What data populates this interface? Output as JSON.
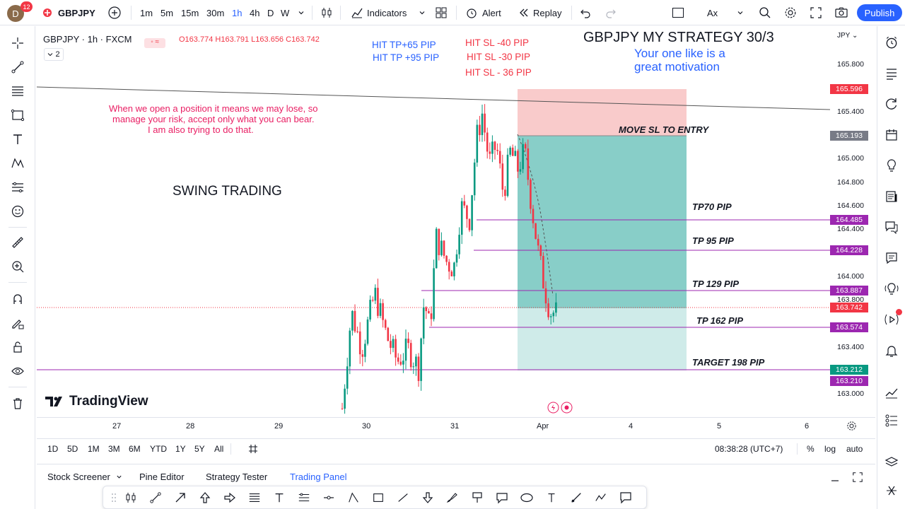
{
  "topbar": {
    "avatar_letter": "D",
    "notification_count": "12",
    "symbol": "GBPJPY",
    "intervals": [
      "1m",
      "5m",
      "15m",
      "30m",
      "1h",
      "4h",
      "D",
      "W"
    ],
    "active_interval": "1h",
    "indicators_label": "Indicators",
    "alert_label": "Alert",
    "replay_label": "Replay",
    "ax_label": "Ax",
    "publish_label": "Publish"
  },
  "legend": {
    "title": "GBPJPY · 1h · FXCM",
    "open": "O163.774",
    "high": "H163.791",
    "low": "L163.656",
    "close": "C163.742",
    "collapse_count": "2"
  },
  "currency": "JPY",
  "price_labels": [
    "165.800",
    "165.400",
    "165.000",
    "164.800",
    "164.600",
    "164.400",
    "164.000",
    "163.800",
    "163.400",
    "163.000"
  ],
  "price_tags": [
    {
      "value": "165.596",
      "color": "#f23645"
    },
    {
      "value": "165.193",
      "color": "#787b86"
    },
    {
      "value": "164.485",
      "color": "#9c27b0"
    },
    {
      "value": "164.228",
      "color": "#9c27b0"
    },
    {
      "value": "163.887",
      "color": "#9c27b0"
    },
    {
      "value": "163.742",
      "color": "#f23645"
    },
    {
      "value": "163.574",
      "color": "#9c27b0"
    },
    {
      "value": "163.212",
      "color": "#089981"
    },
    {
      "value": "163.210",
      "color": "#9c27b0"
    }
  ],
  "annotations": {
    "hit_tp_1": "HIT TP+65 PIP",
    "hit_tp_2": "HIT TP  +95 PIP",
    "hit_sl_1": "HIT SL -40 PIP",
    "hit_sl_2": "HIT SL -30 PIP",
    "hit_sl_3": "HIT SL - 36 PIP",
    "strategy_title": "GBPJPY MY STRATEGY 30/3",
    "motivation_1": "Your one like is a",
    "motivation_2": "great motivation",
    "risk_1": "When we open a position it means we may lose, so",
    "risk_2": "manage your risk, accept only what you can bear.",
    "risk_3": "I am also trying to do that.",
    "swing": "SWING TRADING",
    "move_sl": "MOVE SL TO ENTRY",
    "tp70": "TP70 PIP",
    "tp95": "TP 95 PIP",
    "tp129": "TP 129 PIP",
    "tp162": "TP 162 PIP",
    "target": "TARGET 198 PIP"
  },
  "watermark": "TradingView",
  "time_labels": [
    "27",
    "28",
    "29",
    "30",
    "31",
    "Apr",
    "4",
    "5",
    "6"
  ],
  "range_buttons": [
    "1D",
    "5D",
    "1M",
    "3M",
    "6M",
    "YTD",
    "1Y",
    "5Y",
    "All"
  ],
  "clock": "08:38:28 (UTC+7)",
  "scale_options": [
    "%",
    "log",
    "auto"
  ],
  "bottom_tabs": [
    "Stock Screener",
    "Pine Editor",
    "Strategy Tester",
    "Trading Panel"
  ],
  "colors": {
    "accent": "#2962ff",
    "up": "#089981",
    "down": "#f23645",
    "profit_zone": "#26a69a",
    "loss_zone": "#f7a9a9",
    "level_line": "#9c27b0"
  },
  "chart_data": {
    "type": "candlestick",
    "symbol": "GBPJPY",
    "timeframe": "1h",
    "ylim": [
      162.9,
      166.05
    ],
    "x_ticks": [
      "27",
      "28",
      "29",
      "30",
      "31",
      "Apr",
      "4",
      "5",
      "6"
    ],
    "last_price": 163.742,
    "position": {
      "entry": 165.193,
      "stop": 165.596,
      "target": 163.212
    },
    "levels": [
      164.485,
      164.228,
      163.887,
      163.574,
      163.21
    ]
  }
}
